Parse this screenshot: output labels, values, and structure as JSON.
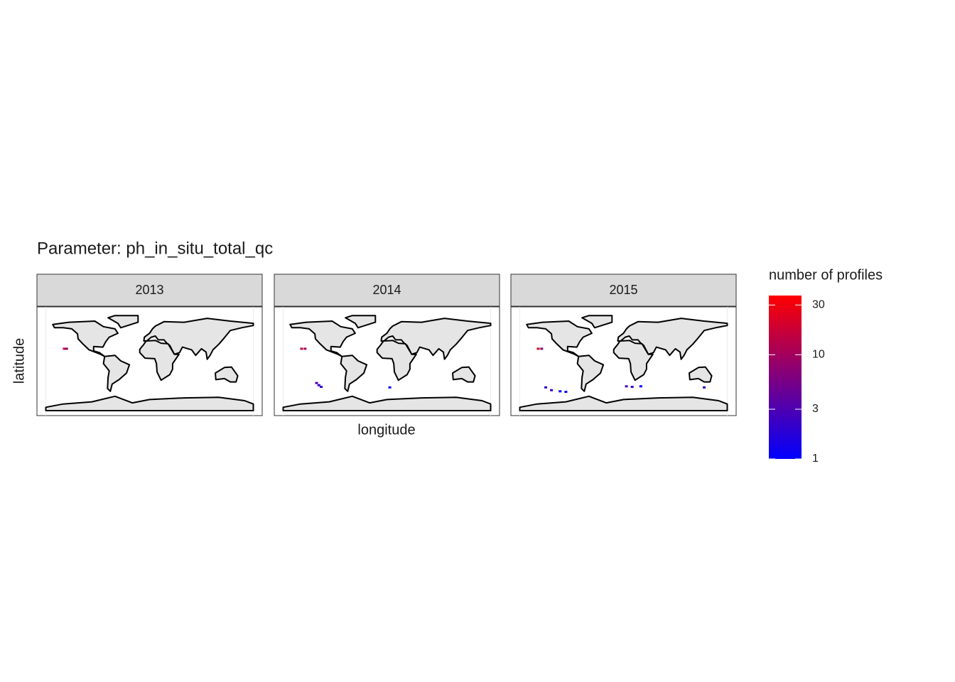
{
  "chart_data": {
    "type": "map",
    "title": "Parameter: ph_in_situ_total_qc",
    "x_label": "longitude",
    "y_label": "latitude",
    "xlim": [
      -180,
      180
    ],
    "ylim": [
      -90,
      90
    ],
    "facets": [
      {
        "label": "2013",
        "points": [
          {
            "lon": -148,
            "lat": 22,
            "value": 20
          },
          {
            "lon": -144,
            "lat": 22,
            "value": 8
          }
        ]
      },
      {
        "label": "2014",
        "points": [
          {
            "lon": -148,
            "lat": 22,
            "value": 15
          },
          {
            "lon": -142,
            "lat": 22,
            "value": 10
          },
          {
            "lon": -122,
            "lat": -40,
            "value": 3
          },
          {
            "lon": -118,
            "lat": -44,
            "value": 2
          },
          {
            "lon": -114,
            "lat": -47,
            "value": 2
          },
          {
            "lon": 5,
            "lat": -48,
            "value": 1
          }
        ]
      },
      {
        "label": "2015",
        "points": [
          {
            "lon": -148,
            "lat": 22,
            "value": 25
          },
          {
            "lon": -142,
            "lat": 22,
            "value": 6
          },
          {
            "lon": -135,
            "lat": -48,
            "value": 2
          },
          {
            "lon": -125,
            "lat": -53,
            "value": 2
          },
          {
            "lon": -110,
            "lat": -55,
            "value": 1
          },
          {
            "lon": -100,
            "lat": -56,
            "value": 1
          },
          {
            "lon": 5,
            "lat": -46,
            "value": 3
          },
          {
            "lon": 15,
            "lat": -47,
            "value": 2
          },
          {
            "lon": 30,
            "lat": -46,
            "value": 1
          },
          {
            "lon": 140,
            "lat": -48,
            "value": 2
          }
        ]
      }
    ],
    "legend": {
      "title": "number of profiles",
      "scale": "log",
      "limits": [
        1,
        37
      ],
      "ticks": [
        1,
        3,
        10,
        30
      ],
      "low_color": "#0000ff",
      "high_color": "#ff0000"
    }
  }
}
